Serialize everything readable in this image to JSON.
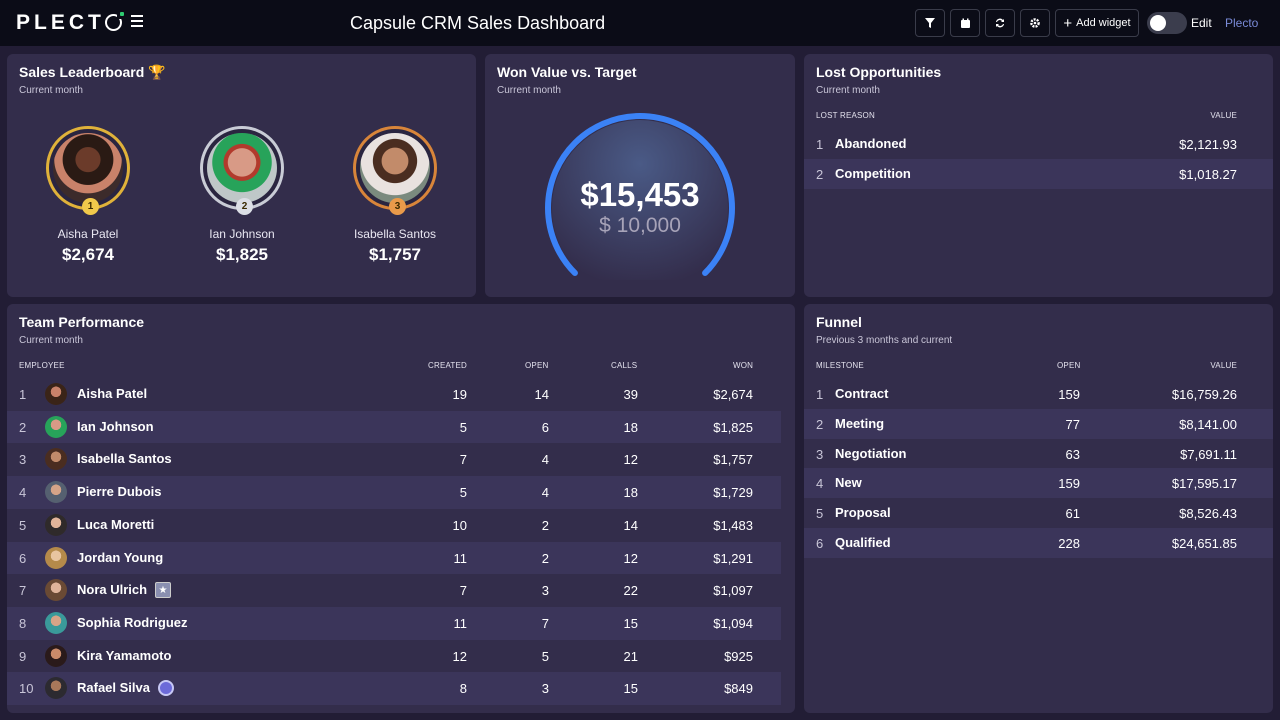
{
  "topbar": {
    "logo": "PLECTO",
    "title": "Capsule CRM Sales Dashboard",
    "add_widget": "Add widget",
    "edit": "Edit",
    "plecto_link": "Plecto"
  },
  "colors": {
    "background": "#221d35",
    "card": "#332d4b",
    "gold": "#e0b23a",
    "silver": "#c9ccd6",
    "bronze": "#d8853a",
    "gauge_blue": "#3b82f6"
  },
  "leaderboard": {
    "title": "Sales Leaderboard 🏆",
    "subtitle": "Current month",
    "entries": [
      {
        "rank": "1",
        "name": "Aisha Patel",
        "value": "$2,674"
      },
      {
        "rank": "2",
        "name": "Ian Johnson",
        "value": "$1,825"
      },
      {
        "rank": "3",
        "name": "Isabella Santos",
        "value": "$1,757"
      }
    ]
  },
  "gauge": {
    "title": "Won Value vs. Target",
    "subtitle": "Current month",
    "value": "$15,453",
    "target": "$ 10,000",
    "progress_fraction": 1.0
  },
  "lost": {
    "title": "Lost Opportunities",
    "subtitle": "Current month",
    "headers": {
      "reason": "LOST REASON",
      "value": "VALUE"
    },
    "rows": [
      {
        "num": "1",
        "reason": "Abandoned",
        "value": "$2,121.93"
      },
      {
        "num": "2",
        "reason": "Competition",
        "value": "$1,018.27"
      }
    ]
  },
  "team": {
    "title": "Team Performance",
    "subtitle": "Current month",
    "headers": {
      "employee": "EMPLOYEE",
      "created": "CREATED",
      "open": "OPEN",
      "calls": "CALLS",
      "won": "WON"
    },
    "rows": [
      {
        "num": "1",
        "name": "Aisha Patel",
        "created": "19",
        "open": "14",
        "calls": "39",
        "won": "$2,674"
      },
      {
        "num": "2",
        "name": "Ian Johnson",
        "created": "5",
        "open": "6",
        "calls": "18",
        "won": "$1,825"
      },
      {
        "num": "3",
        "name": "Isabella Santos",
        "created": "7",
        "open": "4",
        "calls": "12",
        "won": "$1,757"
      },
      {
        "num": "4",
        "name": "Pierre Dubois",
        "created": "5",
        "open": "4",
        "calls": "18",
        "won": "$1,729"
      },
      {
        "num": "5",
        "name": "Luca Moretti",
        "created": "10",
        "open": "2",
        "calls": "14",
        "won": "$1,483"
      },
      {
        "num": "6",
        "name": "Jordan Young",
        "created": "11",
        "open": "2",
        "calls": "12",
        "won": "$1,291"
      },
      {
        "num": "7",
        "name": "Nora Ulrich",
        "created": "7",
        "open": "3",
        "calls": "22",
        "won": "$1,097",
        "badge": "star-badge-icon"
      },
      {
        "num": "8",
        "name": "Sophia Rodriguez",
        "created": "11",
        "open": "7",
        "calls": "15",
        "won": "$1,094"
      },
      {
        "num": "9",
        "name": "Kira Yamamoto",
        "created": "12",
        "open": "5",
        "calls": "21",
        "won": "$925"
      },
      {
        "num": "10",
        "name": "Rafael Silva",
        "created": "8",
        "open": "3",
        "calls": "15",
        "won": "$849",
        "badge": "round-badge-icon"
      }
    ]
  },
  "funnel": {
    "title": "Funnel",
    "subtitle": "Previous 3 months and current",
    "headers": {
      "milestone": "MILESTONE",
      "open": "OPEN",
      "value": "VALUE"
    },
    "rows": [
      {
        "num": "1",
        "milestone": "Contract",
        "open": "159",
        "value": "$16,759.26"
      },
      {
        "num": "2",
        "milestone": "Meeting",
        "open": "77",
        "value": "$8,141.00"
      },
      {
        "num": "3",
        "milestone": "Negotiation",
        "open": "63",
        "value": "$7,691.11"
      },
      {
        "num": "4",
        "milestone": "New",
        "open": "159",
        "value": "$17,595.17"
      },
      {
        "num": "5",
        "milestone": "Proposal",
        "open": "61",
        "value": "$8,526.43"
      },
      {
        "num": "6",
        "milestone": "Qualified",
        "open": "228",
        "value": "$24,651.85"
      }
    ]
  }
}
